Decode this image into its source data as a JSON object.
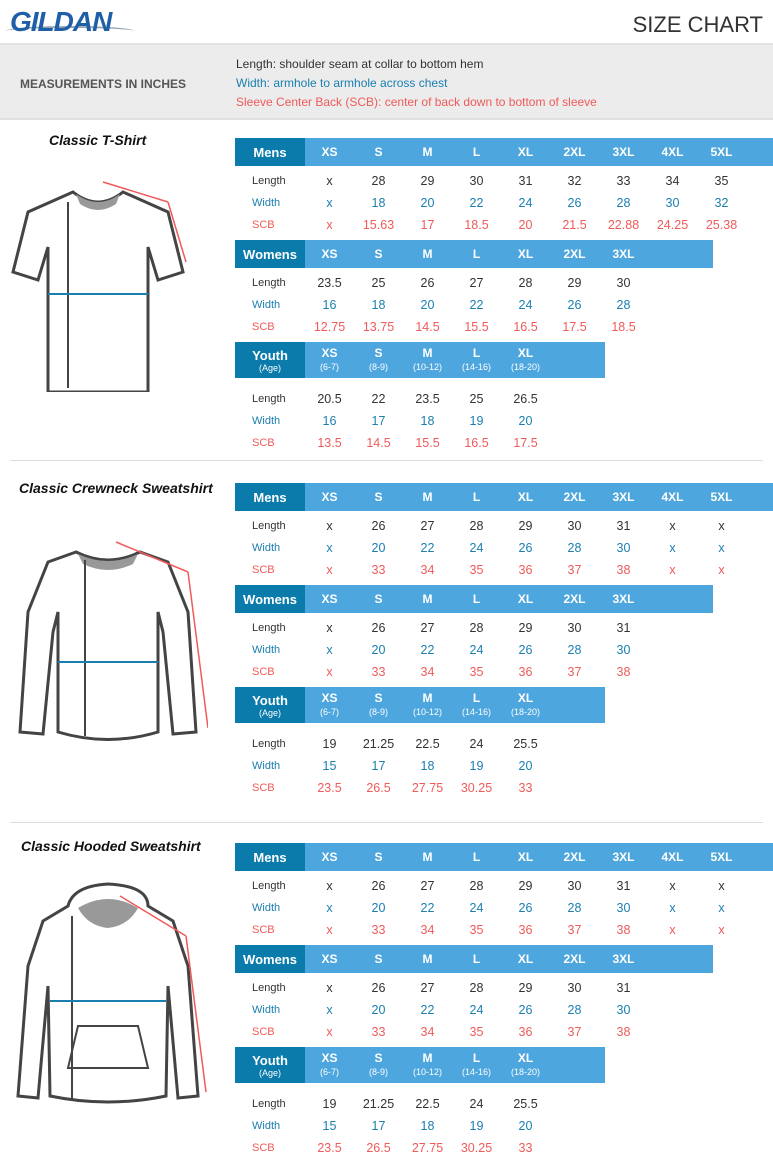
{
  "header": {
    "brand": "GILDAN",
    "title": "SIZE CHART"
  },
  "info": {
    "units": "MEASUREMENTS IN INCHES",
    "length": "Length:  shoulder seam at collar to bottom hem",
    "width": "Width: armhole to armhole across chest",
    "scb": "Sleeve Center Back (SCB): center of back down to bottom of sleeve"
  },
  "colors": {
    "header_dark": "#0a7bab",
    "header_light": "#4ea6de",
    "width": "#1a7fb0",
    "scb": "#f05a5a"
  },
  "row_labels": [
    "Length",
    "Width",
    "SCB"
  ],
  "products": [
    {
      "title": "Classic T-Shirt",
      "illustration": "t-shirt",
      "tables": [
        {
          "label": "Mens",
          "sizes": [
            "XS",
            "S",
            "M",
            "L",
            "XL",
            "2XL",
            "3XL",
            "4XL",
            "5XL"
          ],
          "rows": [
            [
              "x",
              "28",
              "29",
              "30",
              "31",
              "32",
              "33",
              "34",
              "35"
            ],
            [
              "x",
              "18",
              "20",
              "22",
              "24",
              "26",
              "28",
              "30",
              "32"
            ],
            [
              "x",
              "15.63",
              "17",
              "18.5",
              "20",
              "21.5",
              "22.88",
              "24.25",
              "25.38"
            ]
          ]
        },
        {
          "label": "Womens",
          "sizes": [
            "XS",
            "S",
            "M",
            "L",
            "XL",
            "2XL",
            "3XL"
          ],
          "rows": [
            [
              "23.5",
              "25",
              "26",
              "27",
              "28",
              "29",
              "30"
            ],
            [
              "16",
              "18",
              "20",
              "22",
              "24",
              "26",
              "28"
            ],
            [
              "12.75",
              "13.75",
              "14.5",
              "15.5",
              "16.5",
              "17.5",
              "18.5"
            ]
          ]
        },
        {
          "label": "Youth",
          "sublabel": "(Age)",
          "sizes": [
            "XS",
            "S",
            "M",
            "L",
            "XL"
          ],
          "ages": [
            "(6-7)",
            "(8-9)",
            "(10-12)",
            "(14-16)",
            "(18-20)"
          ],
          "rows": [
            [
              "20.5",
              "22",
              "23.5",
              "25",
              "26.5"
            ],
            [
              "16",
              "17",
              "18",
              "19",
              "20"
            ],
            [
              "13.5",
              "14.5",
              "15.5",
              "16.5",
              "17.5"
            ]
          ]
        }
      ]
    },
    {
      "title": "Classic Crewneck Sweatshirt",
      "illustration": "crewneck-sweatshirt",
      "tables": [
        {
          "label": "Mens",
          "sizes": [
            "XS",
            "S",
            "M",
            "L",
            "XL",
            "2XL",
            "3XL",
            "4XL",
            "5XL"
          ],
          "rows": [
            [
              "x",
              "26",
              "27",
              "28",
              "29",
              "30",
              "31",
              "x",
              "x"
            ],
            [
              "x",
              "20",
              "22",
              "24",
              "26",
              "28",
              "30",
              "x",
              "x"
            ],
            [
              "x",
              "33",
              "34",
              "35",
              "36",
              "37",
              "38",
              "x",
              "x"
            ]
          ]
        },
        {
          "label": "Womens",
          "sizes": [
            "XS",
            "S",
            "M",
            "L",
            "XL",
            "2XL",
            "3XL"
          ],
          "rows": [
            [
              "x",
              "26",
              "27",
              "28",
              "29",
              "30",
              "31"
            ],
            [
              "x",
              "20",
              "22",
              "24",
              "26",
              "28",
              "30"
            ],
            [
              "x",
              "33",
              "34",
              "35",
              "36",
              "37",
              "38"
            ]
          ]
        },
        {
          "label": "Youth",
          "sublabel": "(Age)",
          "sizes": [
            "XS",
            "S",
            "M",
            "L",
            "XL"
          ],
          "ages": [
            "(6-7)",
            "(8-9)",
            "(10-12)",
            "(14-16)",
            "(18-20)"
          ],
          "rows": [
            [
              "19",
              "21.25",
              "22.5",
              "24",
              "25.5"
            ],
            [
              "15",
              "17",
              "18",
              "19",
              "20"
            ],
            [
              "23.5",
              "26.5",
              "27.75",
              "30.25",
              "33"
            ]
          ]
        }
      ]
    },
    {
      "title": "Classic Hooded Sweatshirt",
      "illustration": "hooded-sweatshirt",
      "tables": [
        {
          "label": "Mens",
          "sizes": [
            "XS",
            "S",
            "M",
            "L",
            "XL",
            "2XL",
            "3XL",
            "4XL",
            "5XL"
          ],
          "rows": [
            [
              "x",
              "26",
              "27",
              "28",
              "29",
              "30",
              "31",
              "x",
              "x"
            ],
            [
              "x",
              "20",
              "22",
              "24",
              "26",
              "28",
              "30",
              "x",
              "x"
            ],
            [
              "x",
              "33",
              "34",
              "35",
              "36",
              "37",
              "38",
              "x",
              "x"
            ]
          ]
        },
        {
          "label": "Womens",
          "sizes": [
            "XS",
            "S",
            "M",
            "L",
            "XL",
            "2XL",
            "3XL"
          ],
          "rows": [
            [
              "x",
              "26",
              "27",
              "28",
              "29",
              "30",
              "31"
            ],
            [
              "x",
              "20",
              "22",
              "24",
              "26",
              "28",
              "30"
            ],
            [
              "x",
              "33",
              "34",
              "35",
              "36",
              "37",
              "38"
            ]
          ]
        },
        {
          "label": "Youth",
          "sublabel": "(Age)",
          "sizes": [
            "XS",
            "S",
            "M",
            "L",
            "XL"
          ],
          "ages": [
            "(6-7)",
            "(8-9)",
            "(10-12)",
            "(14-16)",
            "(18-20)"
          ],
          "rows": [
            [
              "19",
              "21.25",
              "22.5",
              "24",
              "25.5"
            ],
            [
              "15",
              "17",
              "18",
              "19",
              "20"
            ],
            [
              "23.5",
              "26.5",
              "27.75",
              "30.25",
              "33"
            ]
          ]
        }
      ]
    }
  ]
}
